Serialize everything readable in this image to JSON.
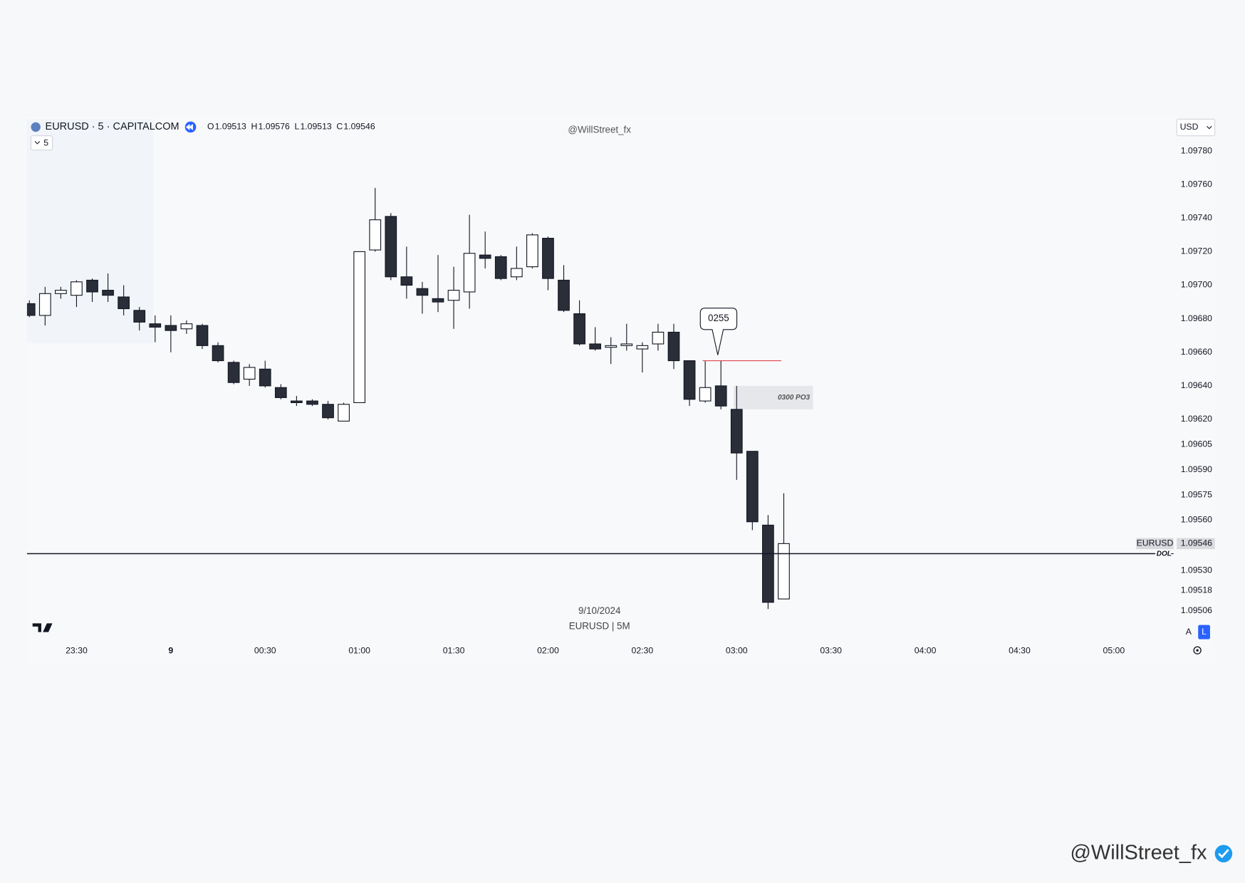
{
  "chart_data": {
    "type": "candlestick",
    "symbol": "EURUSD · 5 · CAPITALCOM",
    "watermark": "@WillStreet_fx",
    "date": "9/10/2024",
    "caption": "EURUSD | 5M",
    "price_tag": "EURUSD",
    "ohlc_labels": [
      "O",
      "H",
      "L",
      "C"
    ],
    "x": [
      "23:15",
      "23:20",
      "23:25",
      "23:30",
      "23:35",
      "23:40",
      "23:45",
      "23:50",
      "23:55",
      "00:00",
      "00:05",
      "00:10",
      "00:15",
      "00:20",
      "00:25",
      "00:30",
      "00:35",
      "00:40",
      "00:45",
      "00:50",
      "00:55",
      "01:00",
      "01:05",
      "01:10",
      "01:15",
      "01:20",
      "01:25",
      "01:30",
      "01:35",
      "01:40",
      "01:45",
      "01:50",
      "01:55",
      "02:00",
      "02:05",
      "02:10",
      "02:15",
      "02:20",
      "02:25",
      "02:30",
      "02:35",
      "02:40",
      "02:45",
      "02:50",
      "02:55",
      "03:00",
      "03:05",
      "03:10",
      "03:15"
    ],
    "open": [
      1.09689,
      1.09682,
      1.09695,
      1.09694,
      1.09703,
      1.09697,
      1.09693,
      1.09685,
      1.09677,
      1.09676,
      1.09674,
      1.09676,
      1.09664,
      1.09654,
      1.09644,
      1.0965,
      1.09639,
      1.09631,
      1.09631,
      1.09629,
      1.09619,
      1.0963,
      1.09721,
      1.09741,
      1.09705,
      1.09698,
      1.09692,
      1.09691,
      1.09696,
      1.09718,
      1.09717,
      1.09705,
      1.09711,
      1.09728,
      1.09703,
      1.09683,
      1.09665,
      1.09663,
      1.09664,
      1.09662,
      1.09665,
      1.09672,
      1.09655,
      1.09631,
      1.0964,
      1.09626,
      1.09601,
      1.09557,
      1.09513
    ],
    "high": [
      1.09691,
      1.09699,
      1.09699,
      1.09703,
      1.09704,
      1.09707,
      1.097,
      1.09687,
      1.09682,
      1.09682,
      1.09679,
      1.09677,
      1.09666,
      1.09655,
      1.09653,
      1.09655,
      1.09641,
      1.09634,
      1.09632,
      1.09631,
      1.0963,
      1.0972,
      1.09758,
      1.09743,
      1.09723,
      1.09702,
      1.09718,
      1.09711,
      1.09742,
      1.09732,
      1.09718,
      1.09723,
      1.09731,
      1.09729,
      1.09712,
      1.09691,
      1.09675,
      1.09669,
      1.09677,
      1.09666,
      1.09677,
      1.09677,
      1.09655,
      1.09655,
      1.09655,
      1.0964,
      1.09601,
      1.09563,
      1.09576
    ],
    "low": [
      1.09681,
      1.09676,
      1.09692,
      1.09687,
      1.0969,
      1.0969,
      1.09682,
      1.09673,
      1.09666,
      1.0966,
      1.09671,
      1.09662,
      1.09654,
      1.09641,
      1.0964,
      1.09639,
      1.09632,
      1.09628,
      1.09628,
      1.0962,
      1.09619,
      1.0963,
      1.0972,
      1.09703,
      1.09692,
      1.09683,
      1.09684,
      1.09674,
      1.09686,
      1.0971,
      1.09703,
      1.09703,
      1.0971,
      1.09697,
      1.09684,
      1.09664,
      1.09661,
      1.09653,
      1.09661,
      1.09648,
      1.09661,
      1.0965,
      1.09628,
      1.0963,
      1.09626,
      1.09584,
      1.09554,
      1.09507,
      1.09513
    ],
    "close": [
      1.09682,
      1.09695,
      1.09697,
      1.09702,
      1.09696,
      1.09694,
      1.09686,
      1.09678,
      1.09675,
      1.09673,
      1.09677,
      1.09664,
      1.09655,
      1.09642,
      1.09651,
      1.0964,
      1.09633,
      1.0963,
      1.09629,
      1.09621,
      1.09629,
      1.0972,
      1.09739,
      1.09705,
      1.097,
      1.09694,
      1.0969,
      1.09697,
      1.09719,
      1.09716,
      1.09704,
      1.0971,
      1.0973,
      1.09704,
      1.09685,
      1.09665,
      1.09662,
      1.09664,
      1.09665,
      1.09664,
      1.09672,
      1.09655,
      1.09632,
      1.09639,
      1.09628,
      1.096,
      1.09559,
      1.09511,
      1.09546
    ],
    "up_color": "#ffffff",
    "down_color": "#2a2e39",
    "wick_color": "#131722",
    "ylim": [
      1.09489,
      1.09799
    ],
    "yticks": [
      {
        "value": 1.0978,
        "label": "1.09780"
      },
      {
        "value": 1.0976,
        "label": "1.09760"
      },
      {
        "value": 1.0974,
        "label": "1.09740"
      },
      {
        "value": 1.0972,
        "label": "1.09720"
      },
      {
        "value": 1.097,
        "label": "1.09700"
      },
      {
        "value": 1.0968,
        "label": "1.09680"
      },
      {
        "value": 1.0966,
        "label": "1.09660"
      },
      {
        "value": 1.0964,
        "label": "1.09640"
      },
      {
        "value": 1.0962,
        "label": "1.09620"
      },
      1.09605,
      {
        "value": 1.0959,
        "label": "1.09590"
      },
      1.09575,
      {
        "value": 1.0956,
        "label": "1.09560"
      },
      {
        "value": 1.0953,
        "label": "1.09530"
      },
      1.09518,
      1.09506
    ],
    "xlim": [
      "23:15",
      "05:20"
    ],
    "xticks": [
      "23:30",
      {
        "value": "00:00",
        "label": "9"
      },
      "00:30",
      "01:00",
      "01:30",
      "02:00",
      "02:30",
      "03:00",
      "03:30",
      "04:00",
      "04:30",
      "05:00"
    ],
    "levels": [
      {
        "value": 1.09655,
        "color": "#e0454b"
      },
      {
        "value": 1.0954,
        "label": "DOL",
        "color": "#131722"
      }
    ],
    "zones": [
      {
        "label": "0300 PO3",
        "range": [
          1.09626,
          1.0964
        ]
      }
    ],
    "callouts": [
      {
        "text": "0255"
      }
    ]
  },
  "ui": {
    "interval": "5",
    "currency": "USD",
    "scale_buttons": [
      "A",
      "L"
    ],
    "handle": "@WillStreet_fx"
  }
}
